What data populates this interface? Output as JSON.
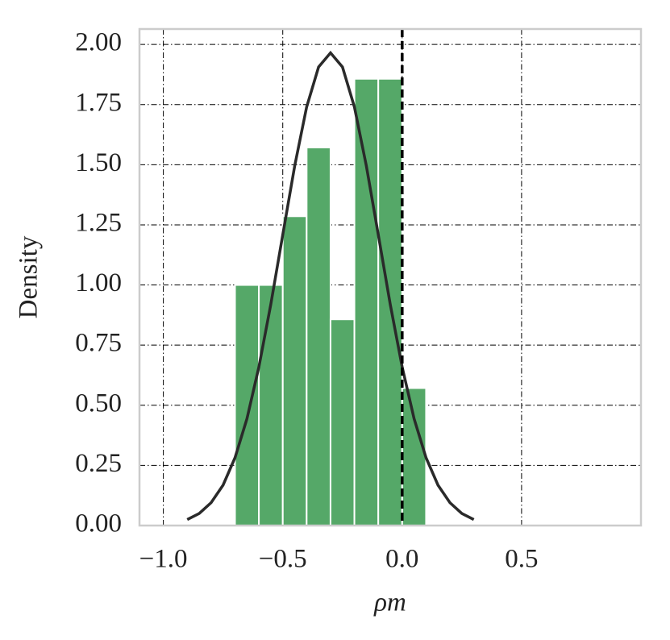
{
  "chart_data": {
    "type": "histogram",
    "xlabel": "ρm",
    "ylabel": "Density",
    "bins": [
      -0.7,
      -0.6,
      -0.5,
      -0.4,
      -0.3,
      -0.2,
      -0.1,
      0.0,
      0.1
    ],
    "values": [
      1.0,
      1.0,
      1.2857,
      1.5714,
      0.8571,
      1.8571,
      1.8571,
      0.5714
    ],
    "color": "#55a868",
    "curve": {
      "color": "#2a2a2a",
      "x": [
        -0.9,
        -0.85,
        -0.8,
        -0.75,
        -0.7,
        -0.65,
        -0.6,
        -0.55,
        -0.5,
        -0.45,
        -0.4,
        -0.35,
        -0.3,
        -0.25,
        -0.2,
        -0.15,
        -0.1,
        -0.05,
        0.0,
        0.05,
        0.1,
        0.15,
        0.2,
        0.25,
        0.3
      ],
      "values": [
        0.025,
        0.05,
        0.095,
        0.168,
        0.282,
        0.444,
        0.659,
        0.92,
        1.209,
        1.495,
        1.74,
        1.906,
        1.965,
        1.906,
        1.74,
        1.495,
        1.209,
        0.92,
        0.659,
        0.444,
        0.282,
        0.168,
        0.095,
        0.05,
        0.025
      ]
    },
    "vline": 0,
    "xlim": [
      -1.1,
      1.0
    ],
    "ylim": [
      0,
      2.064
    ],
    "xticks": [
      {
        "value": -1.0,
        "label": "−1.0"
      },
      {
        "value": -0.5,
        "label": "−0.5"
      },
      {
        "value": 0.0,
        "label": "0.0"
      },
      0.5
    ],
    "yticks": [
      {
        "value": 0,
        "label": "0.00"
      },
      {
        "value": 0.25,
        "label": "0.25"
      },
      {
        "value": 0.5,
        "label": "0.50"
      },
      {
        "value": 0.75,
        "label": "0.75"
      },
      {
        "value": 1.0,
        "label": "1.00"
      },
      {
        "value": 1.25,
        "label": "1.25"
      },
      {
        "value": 1.5,
        "label": "1.50"
      },
      {
        "value": 1.75,
        "label": "1.75"
      },
      {
        "value": 2.0,
        "label": "2.00"
      }
    ],
    "grid": true
  }
}
